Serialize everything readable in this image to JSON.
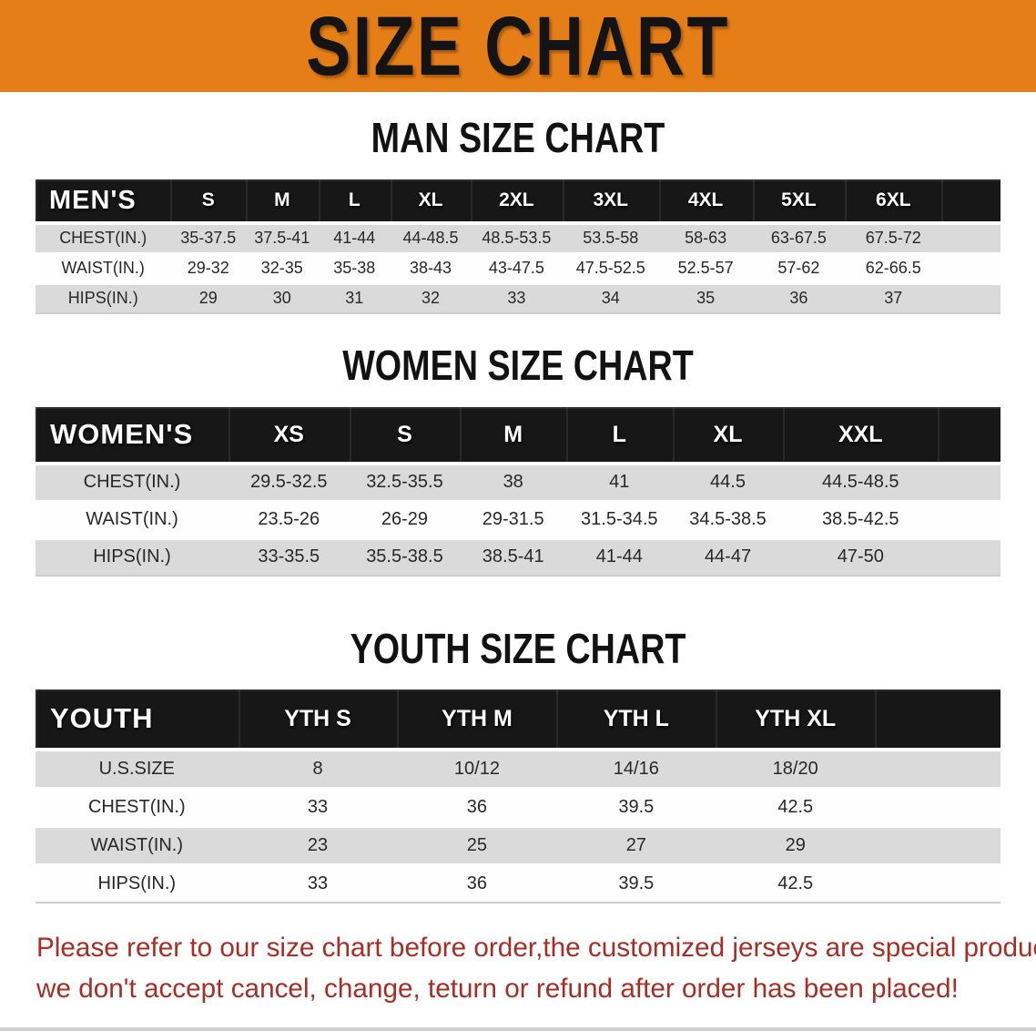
{
  "banner": {
    "title": "SIZE CHART"
  },
  "sections": {
    "men": {
      "heading": "MAN SIZE CHART",
      "table": {
        "header": [
          "MEN'S",
          "S",
          "M",
          "L",
          "XL",
          "2XL",
          "3XL",
          "4XL",
          "5XL",
          "6XL"
        ],
        "rows": [
          [
            "CHEST(IN.)",
            "35-37.5",
            "37.5-41",
            "41-44",
            "44-48.5",
            "48.5-53.5",
            "53.5-58",
            "58-63",
            "63-67.5",
            "67.5-72"
          ],
          [
            "WAIST(IN.)",
            "29-32",
            "32-35",
            "35-38",
            "38-43",
            "43-47.5",
            "47.5-52.5",
            "52.5-57",
            "57-62",
            "62-66.5"
          ],
          [
            "HIPS(IN.)",
            "29",
            "30",
            "31",
            "32",
            "33",
            "34",
            "35",
            "36",
            "37"
          ]
        ]
      }
    },
    "women": {
      "heading": "WOMEN SIZE CHART",
      "table": {
        "header": [
          "WOMEN'S",
          "XS",
          "S",
          "M",
          "L",
          "XL",
          "XXL"
        ],
        "rows": [
          [
            "CHEST(IN.)",
            "29.5-32.5",
            "32.5-35.5",
            "38",
            "41",
            "44.5",
            "44.5-48.5"
          ],
          [
            "WAIST(IN.)",
            "23.5-26",
            "26-29",
            "29-31.5",
            "31.5-34.5",
            "34.5-38.5",
            "38.5-42.5"
          ],
          [
            "HIPS(IN.)",
            "33-35.5",
            "35.5-38.5",
            "38.5-41",
            "41-44",
            "44-47",
            "47-50"
          ]
        ]
      }
    },
    "youth": {
      "heading": "YOUTH SIZE CHART",
      "table": {
        "header": [
          "YOUTH",
          "YTH S",
          "YTH M",
          "YTH L",
          "YTH XL"
        ],
        "rows": [
          [
            "U.S.SIZE",
            "8",
            "10/12",
            "14/16",
            "18/20"
          ],
          [
            "CHEST(IN.)",
            "33",
            "36",
            "39.5",
            "42.5"
          ],
          [
            "WAIST(IN.)",
            "23",
            "25",
            "27",
            "29"
          ],
          [
            "HIPS(IN.)",
            "33",
            "36",
            "39.5",
            "42.5"
          ]
        ]
      }
    }
  },
  "footer": {
    "line1": "Please refer to our size chart before order,the customized jerseys are special products,",
    "line2": "we don't accept cancel, change, teturn or refund after order has been placed!"
  },
  "colors": {
    "banner_orange": "#E57E17",
    "header_black": "#171717",
    "row_gray": "#DADADA",
    "notice_red": "#A82E25"
  }
}
